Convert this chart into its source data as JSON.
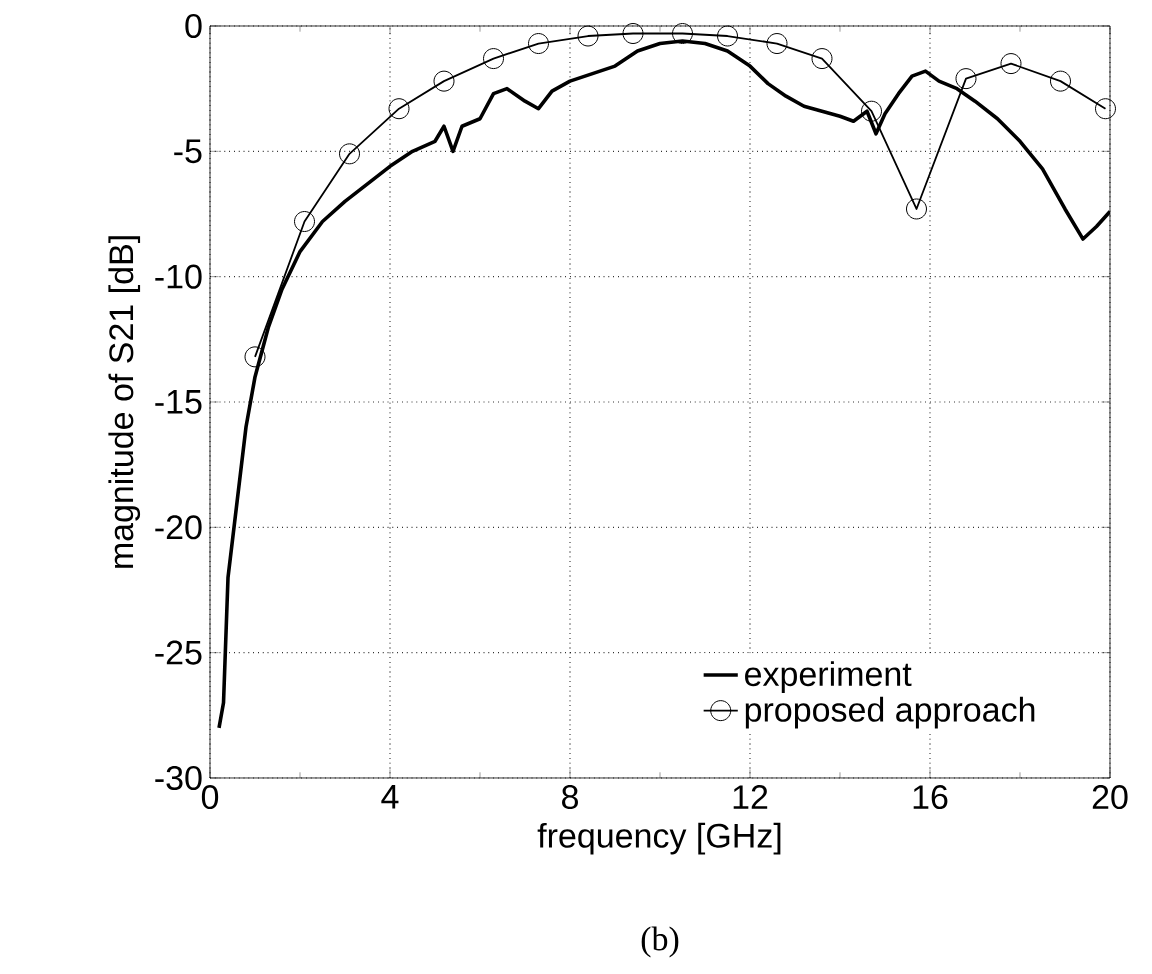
{
  "chart_data": {
    "type": "line",
    "xlabel": "frequency [GHz]",
    "ylabel": "magnitude of S21 [dB]",
    "annotations": [
      "(b)"
    ],
    "xlim": [
      0,
      20
    ],
    "ylim": [
      -30,
      0
    ],
    "xticks": [
      0,
      4,
      8,
      12,
      16,
      20
    ],
    "yticks": [
      -30,
      -25,
      -20,
      -15,
      -10,
      -5,
      0
    ],
    "grid": true,
    "legend": "bottom right",
    "series": [
      {
        "name": "experiment",
        "color": "#000000",
        "marker": "none",
        "x": [
          0.2,
          0.3,
          0.4,
          0.6,
          0.8,
          1.0,
          1.3,
          1.6,
          2.0,
          2.5,
          3.0,
          3.5,
          4.0,
          4.5,
          5.0,
          5.2,
          5.4,
          5.6,
          6.0,
          6.3,
          6.6,
          7.0,
          7.3,
          7.6,
          8.0,
          8.5,
          9.0,
          9.5,
          10.0,
          10.5,
          11.0,
          11.5,
          12.0,
          12.4,
          12.8,
          13.2,
          13.6,
          14.0,
          14.3,
          14.6,
          14.8,
          15.0,
          15.3,
          15.6,
          15.9,
          16.2,
          16.6,
          17.0,
          17.5,
          18.0,
          18.5,
          19.0,
          19.4,
          19.7,
          20.0
        ],
        "values": [
          -28,
          -27,
          -22,
          -19,
          -16,
          -14,
          -12,
          -10.5,
          -9,
          -7.8,
          -7,
          -6.3,
          -5.6,
          -5.0,
          -4.6,
          -4.0,
          -5.0,
          -4.0,
          -3.7,
          -2.7,
          -2.5,
          -3.0,
          -3.3,
          -2.6,
          -2.2,
          -1.9,
          -1.6,
          -1.0,
          -0.7,
          -0.6,
          -0.7,
          -1.0,
          -1.6,
          -2.3,
          -2.8,
          -3.2,
          -3.4,
          -3.6,
          -3.8,
          -3.4,
          -4.3,
          -3.5,
          -2.7,
          -2.0,
          -1.8,
          -2.2,
          -2.5,
          -3.0,
          -3.7,
          -4.6,
          -5.7,
          -7.3,
          -8.5,
          -8.0,
          -7.4
        ]
      },
      {
        "name": "proposed approach",
        "color": "#000000",
        "marker": "circle",
        "x": [
          1.0,
          2.1,
          3.1,
          4.2,
          5.2,
          6.3,
          7.3,
          8.4,
          9.4,
          10.5,
          11.5,
          12.6,
          13.6,
          14.7,
          15.7,
          16.8,
          17.8,
          18.9,
          19.9
        ],
        "values": [
          -13.2,
          -7.8,
          -5.1,
          -3.3,
          -2.2,
          -1.3,
          -0.7,
          -0.4,
          -0.3,
          -0.3,
          -0.4,
          -0.7,
          -1.3,
          -3.4,
          -7.3,
          -2.1,
          -1.5,
          -2.2,
          -3.3
        ]
      }
    ]
  }
}
